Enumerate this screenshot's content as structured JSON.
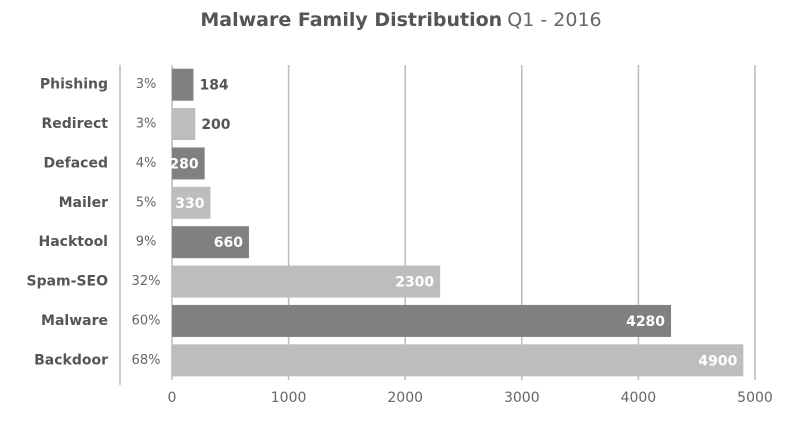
{
  "chart_data": {
    "type": "hbar",
    "title": "Malware Family Distribution",
    "subtitle": "Q1 - 2016",
    "categories": [
      "Phishing",
      "Redirect",
      "Defaced",
      "Mailer",
      "Hacktool",
      "Spam-SEO",
      "Malware",
      "Backdoor"
    ],
    "values": [
      184,
      200,
      280,
      330,
      660,
      2300,
      4280,
      4900
    ],
    "shares": [
      "3%",
      "3%",
      "4%",
      "5%",
      "9%",
      "32%",
      "60%",
      "68%"
    ],
    "colors": [
      "#7f8180",
      "#bdbdbd",
      "#7f8180",
      "#bdbdbd",
      "#7f8180",
      "#bdbdbd",
      "#7f8180",
      "#bdbdbd"
    ],
    "xlim": [
      0,
      5000
    ],
    "xticks": [
      0,
      1000,
      2000,
      3000,
      4000,
      5000
    ],
    "grid": true
  }
}
